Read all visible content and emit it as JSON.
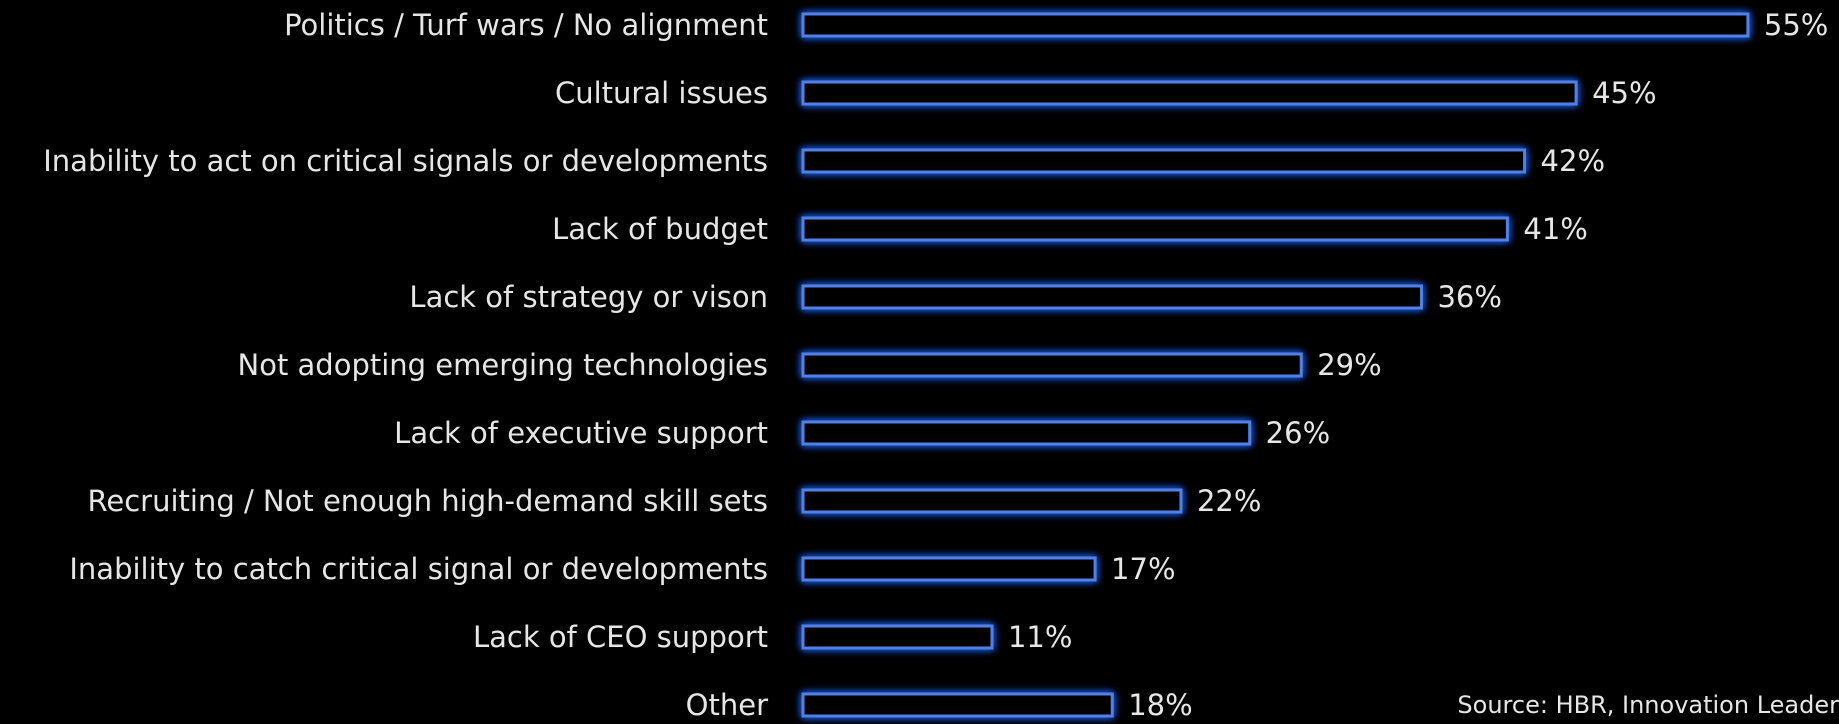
{
  "colors": {
    "background": "#000000",
    "bar_outline": "#4f81e8",
    "bar_glow": "#1f56d6",
    "text": "#e6e6e6"
  },
  "chart_data": {
    "type": "bar",
    "orientation": "horizontal",
    "categories": [
      "Politics / Turf wars / No alignment",
      "Cultural issues",
      "Inability to act on critical signals or developments",
      "Lack of budget",
      "Lack of strategy or vison",
      "Not adopting emerging technologies",
      "Lack of executive support",
      "Recruiting / Not enough high-demand skill sets",
      "Inability to catch critical signal or developments",
      "Lack of CEO support",
      "Other"
    ],
    "values": [
      55,
      45,
      42,
      41,
      36,
      29,
      26,
      22,
      17,
      11,
      18
    ],
    "value_labels": [
      "55%",
      "45%",
      "42%",
      "41%",
      "36%",
      "29%",
      "26%",
      "22%",
      "17%",
      "11%",
      "18%"
    ],
    "unit": "%",
    "title": "",
    "xlabel": "",
    "ylabel": "",
    "grid": false,
    "legend": "none",
    "bar_style": "outlined with blue glow"
  },
  "footer": {
    "source": "Source: HBR, Innovation Leader"
  }
}
